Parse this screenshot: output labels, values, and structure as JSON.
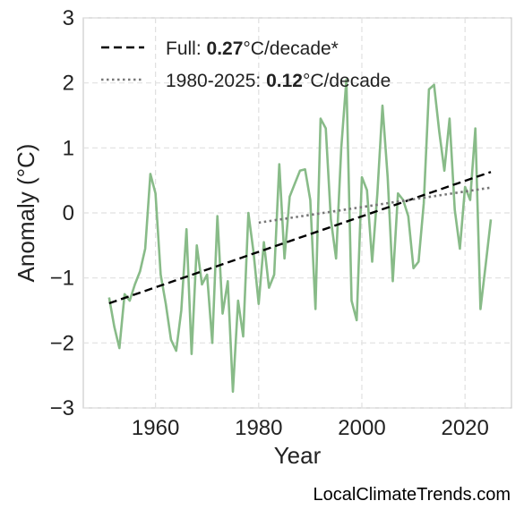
{
  "chart_data": {
    "type": "line",
    "xlabel": "Year",
    "ylabel": "Anomaly (°C)",
    "xlim": [
      1946,
      2029
    ],
    "ylim": [
      -3,
      3
    ],
    "xticks": [
      1960,
      1980,
      2000,
      2020
    ],
    "yticks": [
      3,
      2,
      1,
      0,
      -1,
      -2,
      -3
    ],
    "xtick_labels": [
      "1960",
      "1980",
      "2000",
      "2020"
    ],
    "ytick_labels": [
      "3",
      "2",
      "1",
      "0",
      "−1",
      "−2",
      "−3"
    ],
    "grid": true,
    "legend_position": "top-left",
    "series": [
      {
        "style": "line",
        "color": "#88bb88",
        "x": [
          1951,
          1952,
          1953,
          1954,
          1955,
          1956,
          1957,
          1958,
          1959,
          1960,
          1961,
          1962,
          1963,
          1964,
          1965,
          1966,
          1967,
          1968,
          1969,
          1970,
          1971,
          1972,
          1973,
          1974,
          1975,
          1976,
          1977,
          1978,
          1979,
          1980,
          1981,
          1982,
          1983,
          1984,
          1985,
          1986,
          1987,
          1988,
          1989,
          1990,
          1991,
          1992,
          1993,
          1994,
          1995,
          1996,
          1997,
          1998,
          1999,
          2000,
          2001,
          2002,
          2003,
          2004,
          2005,
          2006,
          2007,
          2008,
          2009,
          2010,
          2011,
          2012,
          2013,
          2014,
          2015,
          2016,
          2017,
          2018,
          2019,
          2020,
          2021,
          2022,
          2023,
          2024,
          2025
        ],
        "y": [
          -1.3,
          -1.75,
          -2.08,
          -1.25,
          -1.35,
          -1.1,
          -0.9,
          -0.55,
          0.6,
          0.3,
          -0.95,
          -1.4,
          -1.95,
          -2.12,
          -1.5,
          -0.25,
          -2.17,
          -0.5,
          -1.1,
          -0.95,
          -2.0,
          -0.05,
          -1.55,
          -1.05,
          -2.75,
          -1.35,
          -1.9,
          0.0,
          -0.6,
          -1.4,
          -0.45,
          -1.15,
          -0.95,
          0.75,
          -0.7,
          0.25,
          0.45,
          0.65,
          0.67,
          0.2,
          -1.48,
          1.45,
          1.3,
          -0.1,
          -0.7,
          1.0,
          2.05,
          -1.35,
          -1.65,
          0.55,
          0.35,
          -0.75,
          0.3,
          1.65,
          0.55,
          -1.05,
          0.3,
          0.2,
          -0.05,
          -0.85,
          -0.75,
          0.15,
          1.9,
          1.97,
          1.25,
          0.65,
          1.45,
          0.05,
          -0.55,
          0.4,
          0.2,
          1.3,
          -1.48,
          -0.8,
          -0.1
        ]
      },
      {
        "style": "dashed",
        "color": "#000000",
        "x": [
          1951,
          2025
        ],
        "y": [
          -1.39,
          0.63
        ]
      },
      {
        "style": "dotted",
        "color": "#777777",
        "x": [
          1980,
          2025
        ],
        "y": [
          -0.15,
          0.39
        ]
      }
    ],
    "legend": [
      {
        "prefix": "Full: ",
        "bold": "0.27",
        "suffix": "°C/decade*",
        "style": "dashed",
        "color": "#000000"
      },
      {
        "prefix": "1980-2025: ",
        "bold": "0.12",
        "suffix": "°C/decade",
        "style": "dotted",
        "color": "#777777"
      }
    ]
  },
  "watermark": "LocalClimateTrends.com"
}
